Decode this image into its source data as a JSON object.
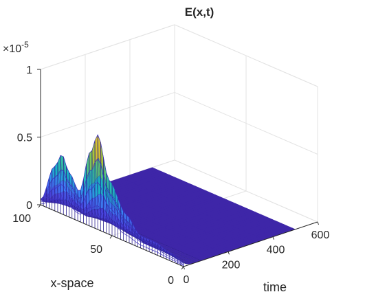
{
  "chart_data": {
    "type": "surface",
    "title": "E(x,t)",
    "xlabel": "time",
    "ylabel": "x-space",
    "zlabel": "",
    "exponent_label": "×10",
    "exponent_power": "-5",
    "t_range": [
      0,
      600
    ],
    "x_range": [
      0,
      100
    ],
    "z_range": [
      0,
      1e-05
    ],
    "t_ticks": [
      {
        "value": 0,
        "label": "0"
      },
      {
        "value": 200,
        "label": "200"
      },
      {
        "value": 400,
        "label": "400"
      },
      {
        "value": 600,
        "label": "600"
      }
    ],
    "x_ticks": [
      {
        "value": 0,
        "label": "0"
      },
      {
        "value": 50,
        "label": "50"
      },
      {
        "value": 100,
        "label": "100"
      }
    ],
    "z_ticks": [
      {
        "value": 0,
        "label": "0"
      },
      {
        "value": 0.5,
        "label": "0.5"
      },
      {
        "value": 1,
        "label": "1"
      }
    ],
    "t_data_end": 500,
    "initial_profile_t0": [
      {
        "x": 100,
        "E": 0.04
      },
      {
        "x": 90,
        "E": 0.33
      },
      {
        "x": 85,
        "E": 0.44
      },
      {
        "x": 80,
        "E": 0.33
      },
      {
        "x": 73,
        "E": 0.22
      },
      {
        "x": 65,
        "E": 0.55
      },
      {
        "x": 60,
        "E": 0.7
      },
      {
        "x": 52,
        "E": 0.4
      },
      {
        "x": 40,
        "E": 0.2
      },
      {
        "x": 30,
        "E": 0.09
      },
      {
        "x": 20,
        "E": 0.09
      },
      {
        "x": 10,
        "E": 0.06
      },
      {
        "x": 0,
        "E": 0.03
      }
    ],
    "decay_time_constant": 14,
    "colormap": [
      "#3e26a8",
      "#4a47e0",
      "#3b82f6",
      "#19b4c8",
      "#3ec490",
      "#9bc73c",
      "#e8bf2f",
      "#f9e025"
    ],
    "grid": true
  }
}
